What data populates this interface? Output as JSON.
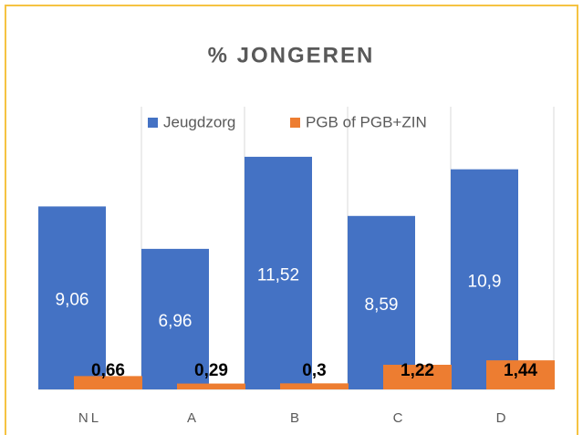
{
  "chart_data": {
    "type": "bar",
    "title": "% JONGEREN",
    "categories": [
      "NL",
      "A",
      "B",
      "C",
      "D"
    ],
    "series": [
      {
        "name": "Jeugdzorg",
        "color": "#4472c4",
        "values": [
          9.06,
          6.96,
          11.52,
          8.59,
          10.9
        ],
        "value_labels": [
          "9,06",
          "6,96",
          "11,52",
          "8,59",
          "10,9"
        ]
      },
      {
        "name": "PGB of PGB+ZIN",
        "color": "#ed7d31",
        "values": [
          0.66,
          0.29,
          0.3,
          1.22,
          1.44
        ],
        "value_labels": [
          "0,66",
          "0,29",
          "0,3",
          "1,22",
          "1,44"
        ]
      }
    ],
    "ylim": [
      0,
      14
    ],
    "legend": "top"
  }
}
